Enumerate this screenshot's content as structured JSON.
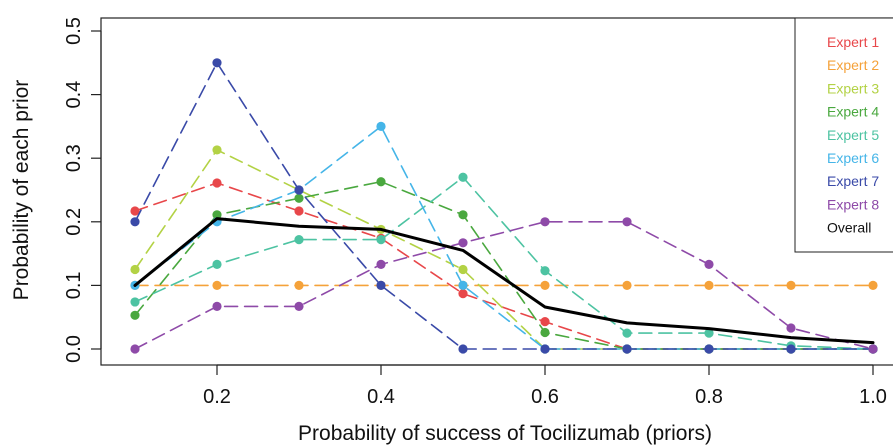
{
  "chart_data": {
    "type": "line",
    "title": "",
    "xlabel": "Probability of success of Tocilizumab (priors)",
    "ylabel": "Probability of each prior",
    "xlim": [
      0.1,
      1.0
    ],
    "ylim": [
      0.0,
      0.5
    ],
    "x": [
      0.1,
      0.2,
      0.3,
      0.4,
      0.5,
      0.6,
      0.7,
      0.8,
      0.9,
      1.0
    ],
    "xticks": [
      0.2,
      0.4,
      0.6,
      0.8,
      1.0
    ],
    "xtick_labels": [
      "0.2",
      "0.4",
      "0.6",
      "0.8",
      "1.0"
    ],
    "yticks": [
      0.0,
      0.1,
      0.2,
      0.3,
      0.4,
      0.5
    ],
    "ytick_labels": [
      "0.0",
      "0.1",
      "0.2",
      "0.3",
      "0.4",
      "0.5"
    ],
    "grid": false,
    "legend_position": "top-right",
    "series": [
      {
        "name": "Expert 1",
        "color": "#e8474a",
        "dashed": true,
        "markers": true,
        "values": [
          0.217,
          0.261,
          0.217,
          0.174,
          0.087,
          0.043,
          0.0,
          0.0,
          0.0,
          0.0
        ]
      },
      {
        "name": "Expert 2",
        "color": "#f5a23a",
        "dashed": true,
        "markers": true,
        "values": [
          0.1,
          0.1,
          0.1,
          0.1,
          0.1,
          0.1,
          0.1,
          0.1,
          0.1,
          0.1
        ]
      },
      {
        "name": "Expert 3",
        "color": "#b3d245",
        "dashed": true,
        "markers": true,
        "values": [
          0.125,
          0.313,
          0.25,
          0.188,
          0.125,
          0.0,
          0.0,
          0.0,
          0.0,
          0.0
        ]
      },
      {
        "name": "Expert 4",
        "color": "#4aa83f",
        "dashed": true,
        "markers": true,
        "values": [
          0.053,
          0.211,
          0.237,
          0.263,
          0.211,
          0.026,
          0.0,
          0.0,
          0.0,
          0.0
        ]
      },
      {
        "name": "Expert 5",
        "color": "#4dc3a2",
        "dashed": true,
        "markers": true,
        "values": [
          0.074,
          0.133,
          0.172,
          0.172,
          0.27,
          0.123,
          0.025,
          0.025,
          0.005,
          0.0
        ]
      },
      {
        "name": "Expert 6",
        "color": "#45b5e8",
        "dashed": true,
        "markers": true,
        "values": [
          0.1,
          0.2,
          0.25,
          0.35,
          0.1,
          0.0,
          0.0,
          0.0,
          0.0,
          0.0
        ]
      },
      {
        "name": "Expert 7",
        "color": "#3a4aa8",
        "dashed": true,
        "markers": true,
        "values": [
          0.2,
          0.45,
          0.25,
          0.1,
          0.0,
          0.0,
          0.0,
          0.0,
          0.0,
          0.0
        ]
      },
      {
        "name": "Expert 8",
        "color": "#8e4aa8",
        "dashed": true,
        "markers": true,
        "values": [
          0.0,
          0.067,
          0.067,
          0.133,
          0.167,
          0.2,
          0.2,
          0.133,
          0.033,
          0.0
        ]
      },
      {
        "name": "Overall",
        "color": "#000000",
        "dashed": false,
        "markers": false,
        "values": [
          0.1,
          0.205,
          0.193,
          0.188,
          0.155,
          0.066,
          0.041,
          0.032,
          0.018,
          0.01
        ]
      }
    ]
  }
}
